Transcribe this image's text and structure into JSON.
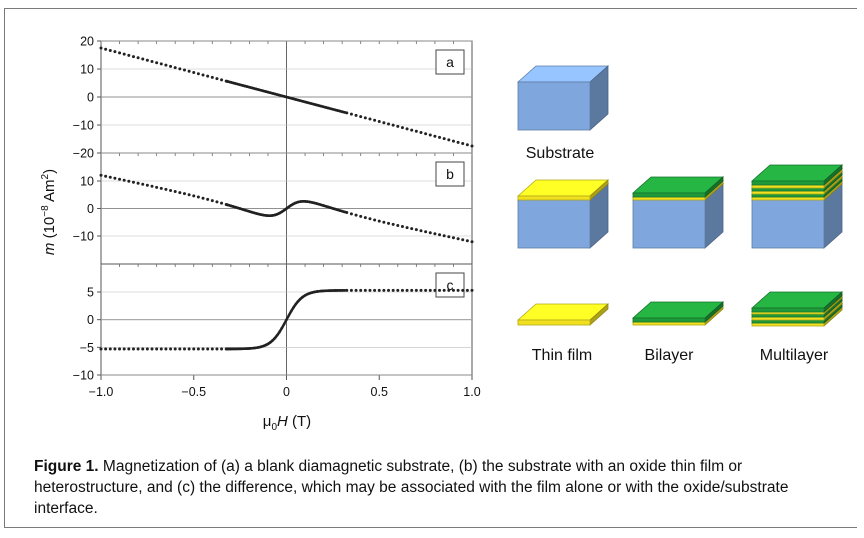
{
  "figure": {
    "caption_lead": "Figure 1.",
    "caption_text": "Magnetization of (a) a blank diamagnetic substrate, (b) the substrate with an oxide thin film or heterostructure, and (c) the difference, which may be associated with the film alone or with the oxide/substrate interface."
  },
  "illustration": {
    "labels": {
      "substrate": "Substrate",
      "thin_film": "Thin film",
      "bilayer": "Bilayer",
      "multilayer": "Multilayer"
    },
    "colors": {
      "substrate": "#7fa7dd",
      "film_yellow": "#f0e020",
      "film_green": "#1f9a3a",
      "interlayer_olive": "#9a9a3a"
    }
  },
  "chart_data": [
    {
      "panel": "a",
      "type": "scatter",
      "ylim": [
        -20,
        20
      ],
      "yticks": [
        "20",
        "10",
        "0",
        "−10",
        "−20"
      ],
      "ytick_values": [
        20,
        10,
        0,
        -10,
        -20
      ],
      "xlim": [
        -1.0,
        1.0
      ],
      "model": "linear",
      "x": [
        -1.0,
        -0.75,
        -0.5,
        -0.3,
        -0.15,
        0,
        0.15,
        0.3,
        0.5,
        0.75,
        1.0
      ],
      "y": [
        17.5,
        13.1,
        8.75,
        5.2,
        2.6,
        0,
        -2.6,
        -5.2,
        -8.75,
        -13.1,
        -17.5
      ],
      "grid": true
    },
    {
      "panel": "b",
      "type": "scatter",
      "ylim": [
        -15,
        15
      ],
      "yticks": [
        "10",
        "0",
        "−10"
      ],
      "ytick_values": [
        10,
        0,
        -10
      ],
      "xlim": [
        -1.0,
        1.0
      ],
      "model": "linear_plus_saturation",
      "x": [
        -1.0,
        -0.5,
        -0.3,
        -0.1,
        -0.03,
        0,
        0.03,
        0.1,
        0.3,
        0.5,
        1.0
      ],
      "y": [
        14.2,
        6.0,
        1.2,
        -1.9,
        -1.4,
        0,
        1.4,
        1.9,
        -1.2,
        -6.0,
        -14.2
      ],
      "grid": true
    },
    {
      "panel": "c",
      "type": "scatter",
      "ylim": [
        -10,
        10
      ],
      "yticks": [
        "5",
        "0",
        "−5",
        "−10"
      ],
      "ytick_values": [
        5,
        0,
        -5,
        -10
      ],
      "xlim": [
        -1.0,
        1.0
      ],
      "model": "saturation",
      "x": [
        -1.0,
        -0.5,
        -0.3,
        -0.1,
        -0.05,
        0,
        0.05,
        0.1,
        0.3,
        0.5,
        1.0
      ],
      "y": [
        -5.3,
        -5.1,
        -4.7,
        -3.3,
        -2.2,
        0,
        2.2,
        3.3,
        4.7,
        5.1,
        5.3
      ],
      "grid": true
    }
  ],
  "axes": {
    "xticks": [
      "−1.0",
      "−0.5",
      "0",
      "0.5",
      "1.0"
    ],
    "xtick_values": [
      -1.0,
      -0.5,
      0,
      0.5,
      1.0
    ],
    "xlabel_mu": "μ",
    "xlabel_sub": "0",
    "xlabel_H": "H",
    "xlabel_unit": " (T)",
    "ylabel_m": "m",
    "ylabel_rest1": " (10",
    "ylabel_exp": "−8",
    "ylabel_rest2": " Am",
    "ylabel_sq": "2",
    "ylabel_end": ")",
    "panel_tags": [
      "a",
      "b",
      "c"
    ]
  }
}
